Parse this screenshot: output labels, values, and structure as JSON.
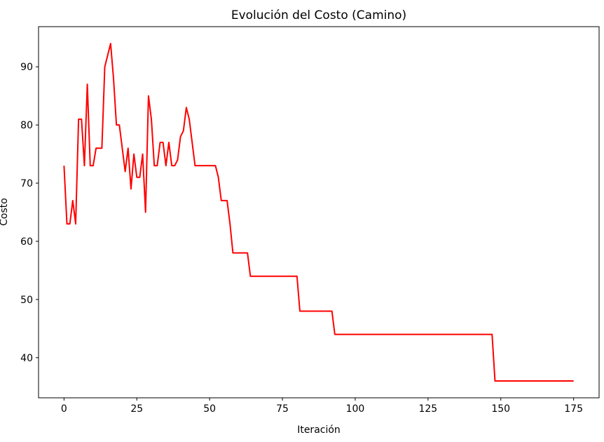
{
  "chart_data": {
    "type": "line",
    "title": "Evolución del Costo (Camino)",
    "x_label": "Iteración",
    "y_label": "Costo",
    "x": [
      0,
      1,
      2,
      3,
      4,
      5,
      6,
      7,
      8,
      9,
      10,
      11,
      12,
      13,
      14,
      16,
      17,
      18,
      19,
      20,
      21,
      22,
      23,
      24,
      25,
      26,
      27,
      28,
      29,
      30,
      31,
      32,
      33,
      34,
      35,
      36,
      37,
      38,
      39,
      40,
      41,
      42,
      43,
      44,
      45,
      52,
      53,
      54,
      56,
      57,
      58,
      63,
      64,
      80,
      81,
      92,
      93,
      147,
      148,
      175
    ],
    "series": [
      {
        "name": "Costo",
        "color": "#ff0000",
        "values": [
          73,
          63,
          63,
          67,
          63,
          81,
          81,
          73,
          87,
          73,
          73,
          76,
          76,
          76,
          90,
          94,
          88,
          80,
          80,
          76,
          72,
          76,
          69,
          75,
          71,
          71,
          75,
          65,
          85,
          81,
          73,
          73,
          77,
          77,
          73,
          77,
          73,
          73,
          74,
          78,
          79,
          83,
          81,
          77,
          73,
          73,
          71,
          67,
          67,
          63,
          58,
          58,
          54,
          54,
          48,
          48,
          44,
          44,
          36,
          36
        ]
      }
    ],
    "xlim": [
      -8.75,
      183.75
    ],
    "xticks": [
      0,
      25,
      50,
      75,
      100,
      125,
      150,
      175
    ],
    "ylim": [
      33.1,
      96.9
    ],
    "yticks": [
      40,
      50,
      60,
      70,
      80,
      90
    ]
  }
}
